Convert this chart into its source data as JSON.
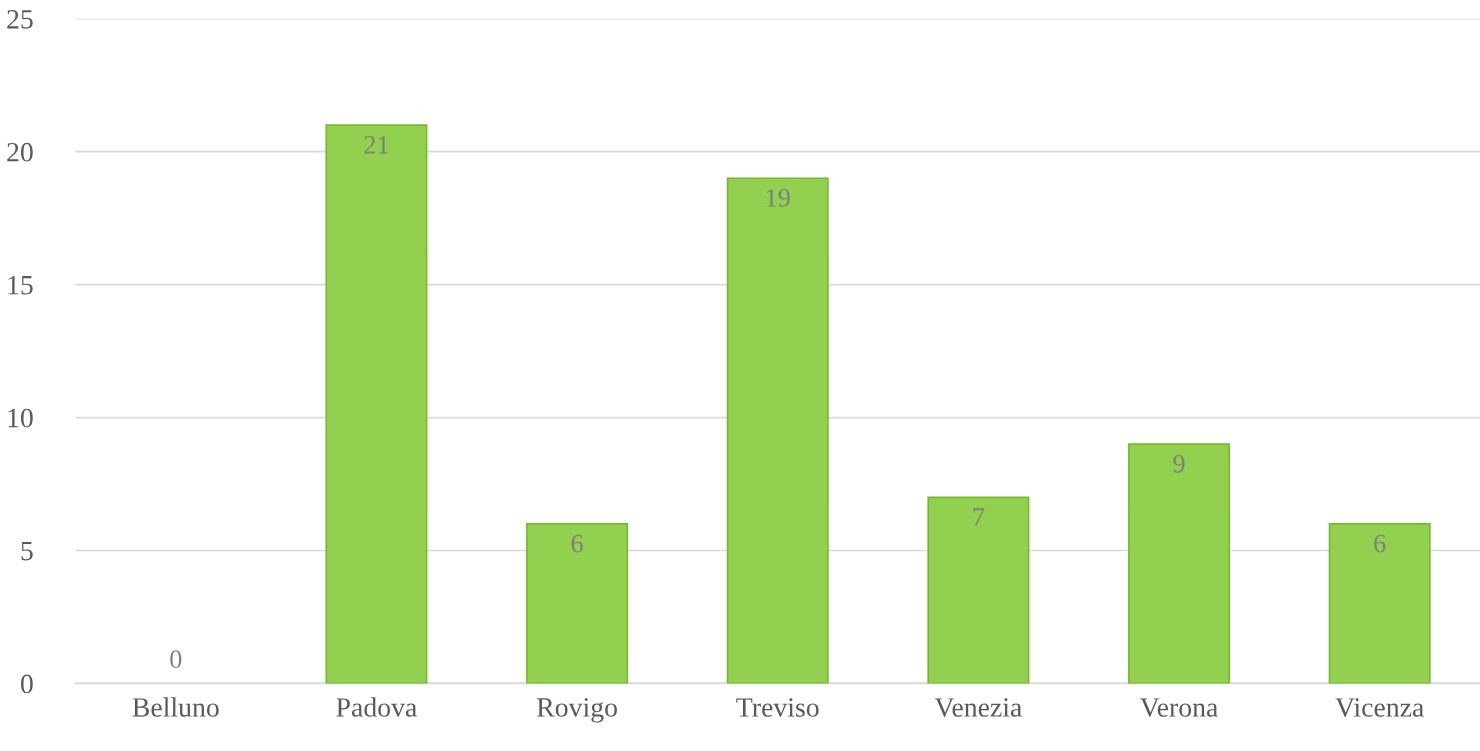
{
  "chart_data": {
    "type": "bar",
    "categories": [
      "Belluno",
      "Padova",
      "Rovigo",
      "Treviso",
      "Venezia",
      "Verona",
      "Vicenza"
    ],
    "values": [
      0,
      21,
      6,
      19,
      7,
      9,
      6
    ],
    "color": "#92d050",
    "ylim": [
      0,
      25
    ],
    "yticks": [
      0,
      5,
      10,
      15,
      20,
      25
    ],
    "grid": "y",
    "data_labels": true
  }
}
